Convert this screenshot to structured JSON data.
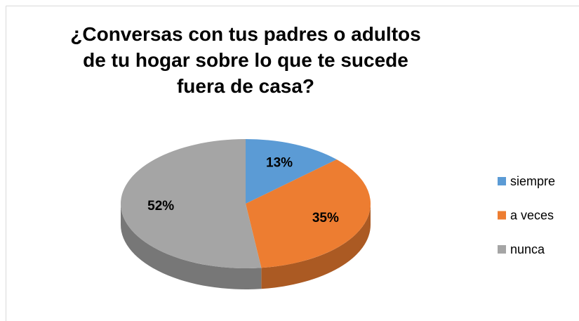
{
  "chart_data": {
    "type": "pie",
    "title": "¿Conversas con tus padres o adultos de tu hogar sobre lo que te sucede fuera de casa?",
    "categories": [
      "siempre",
      "a veces",
      "nunca"
    ],
    "values": [
      13,
      35,
      52
    ],
    "value_labels": [
      "13%",
      "35%",
      "52%"
    ],
    "colors": [
      "#5b9bd5",
      "#ed7d31",
      "#a5a5a5"
    ],
    "legend": "right"
  }
}
